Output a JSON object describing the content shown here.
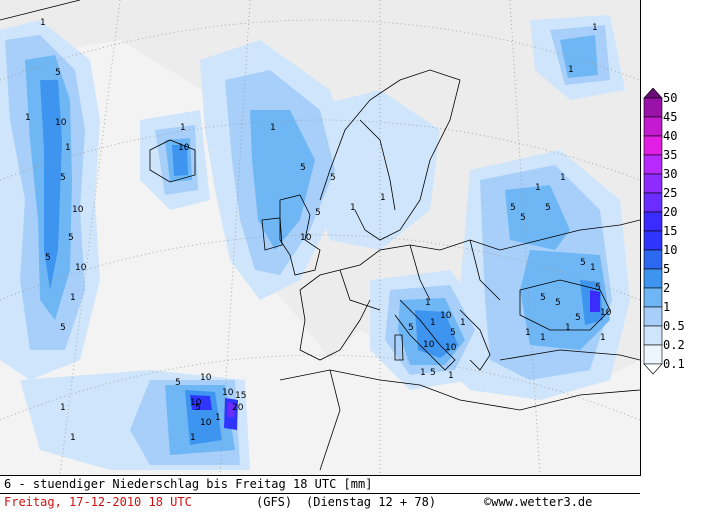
{
  "legend": {
    "levels": [
      "50",
      "45",
      "40",
      "35",
      "30",
      "25",
      "20",
      "15",
      "10",
      "5",
      "2",
      "1",
      "0.5",
      "0.2",
      "0.1"
    ],
    "colors": [
      "#6b0b7a",
      "#9b12a8",
      "#c41ad0",
      "#e21ee5",
      "#b829ff",
      "#8e2bff",
      "#6a2cff",
      "#3c2bff",
      "#2d35ff",
      "#2d68f0",
      "#3d95f0",
      "#6fb6f5",
      "#a7cffa",
      "#cfe5fb",
      "#eef6fd"
    ]
  },
  "footer": {
    "line1": "6 - stuendiger Niederschlag bis Freitag 18 UTC [mm]",
    "date": "Freitag, 17-12-2010  18 UTC",
    "model": "(GFS)",
    "run": "(Dienstag 12 + 78)",
    "source": "©www.wetter3.de"
  },
  "contour_labels": {
    "values": [
      "1",
      "5",
      "10",
      "1",
      "5",
      "10",
      "1",
      "5",
      "1",
      "5",
      "10",
      "5",
      "1",
      "10",
      "10",
      "10",
      "5",
      "1",
      "10",
      "5",
      "1",
      "1",
      "5",
      "1",
      "5",
      "10",
      "1",
      "5",
      "1",
      "5",
      "1",
      "5",
      "5",
      "1",
      "20",
      "10",
      "15",
      "1",
      "10",
      "5",
      "1",
      "5",
      "1",
      "1",
      "1",
      "5",
      "1",
      "10",
      "5",
      "1",
      "1",
      "5",
      "1",
      "10",
      "10",
      "5",
      "5",
      "1",
      "1",
      "1",
      "1",
      "5"
    ]
  }
}
